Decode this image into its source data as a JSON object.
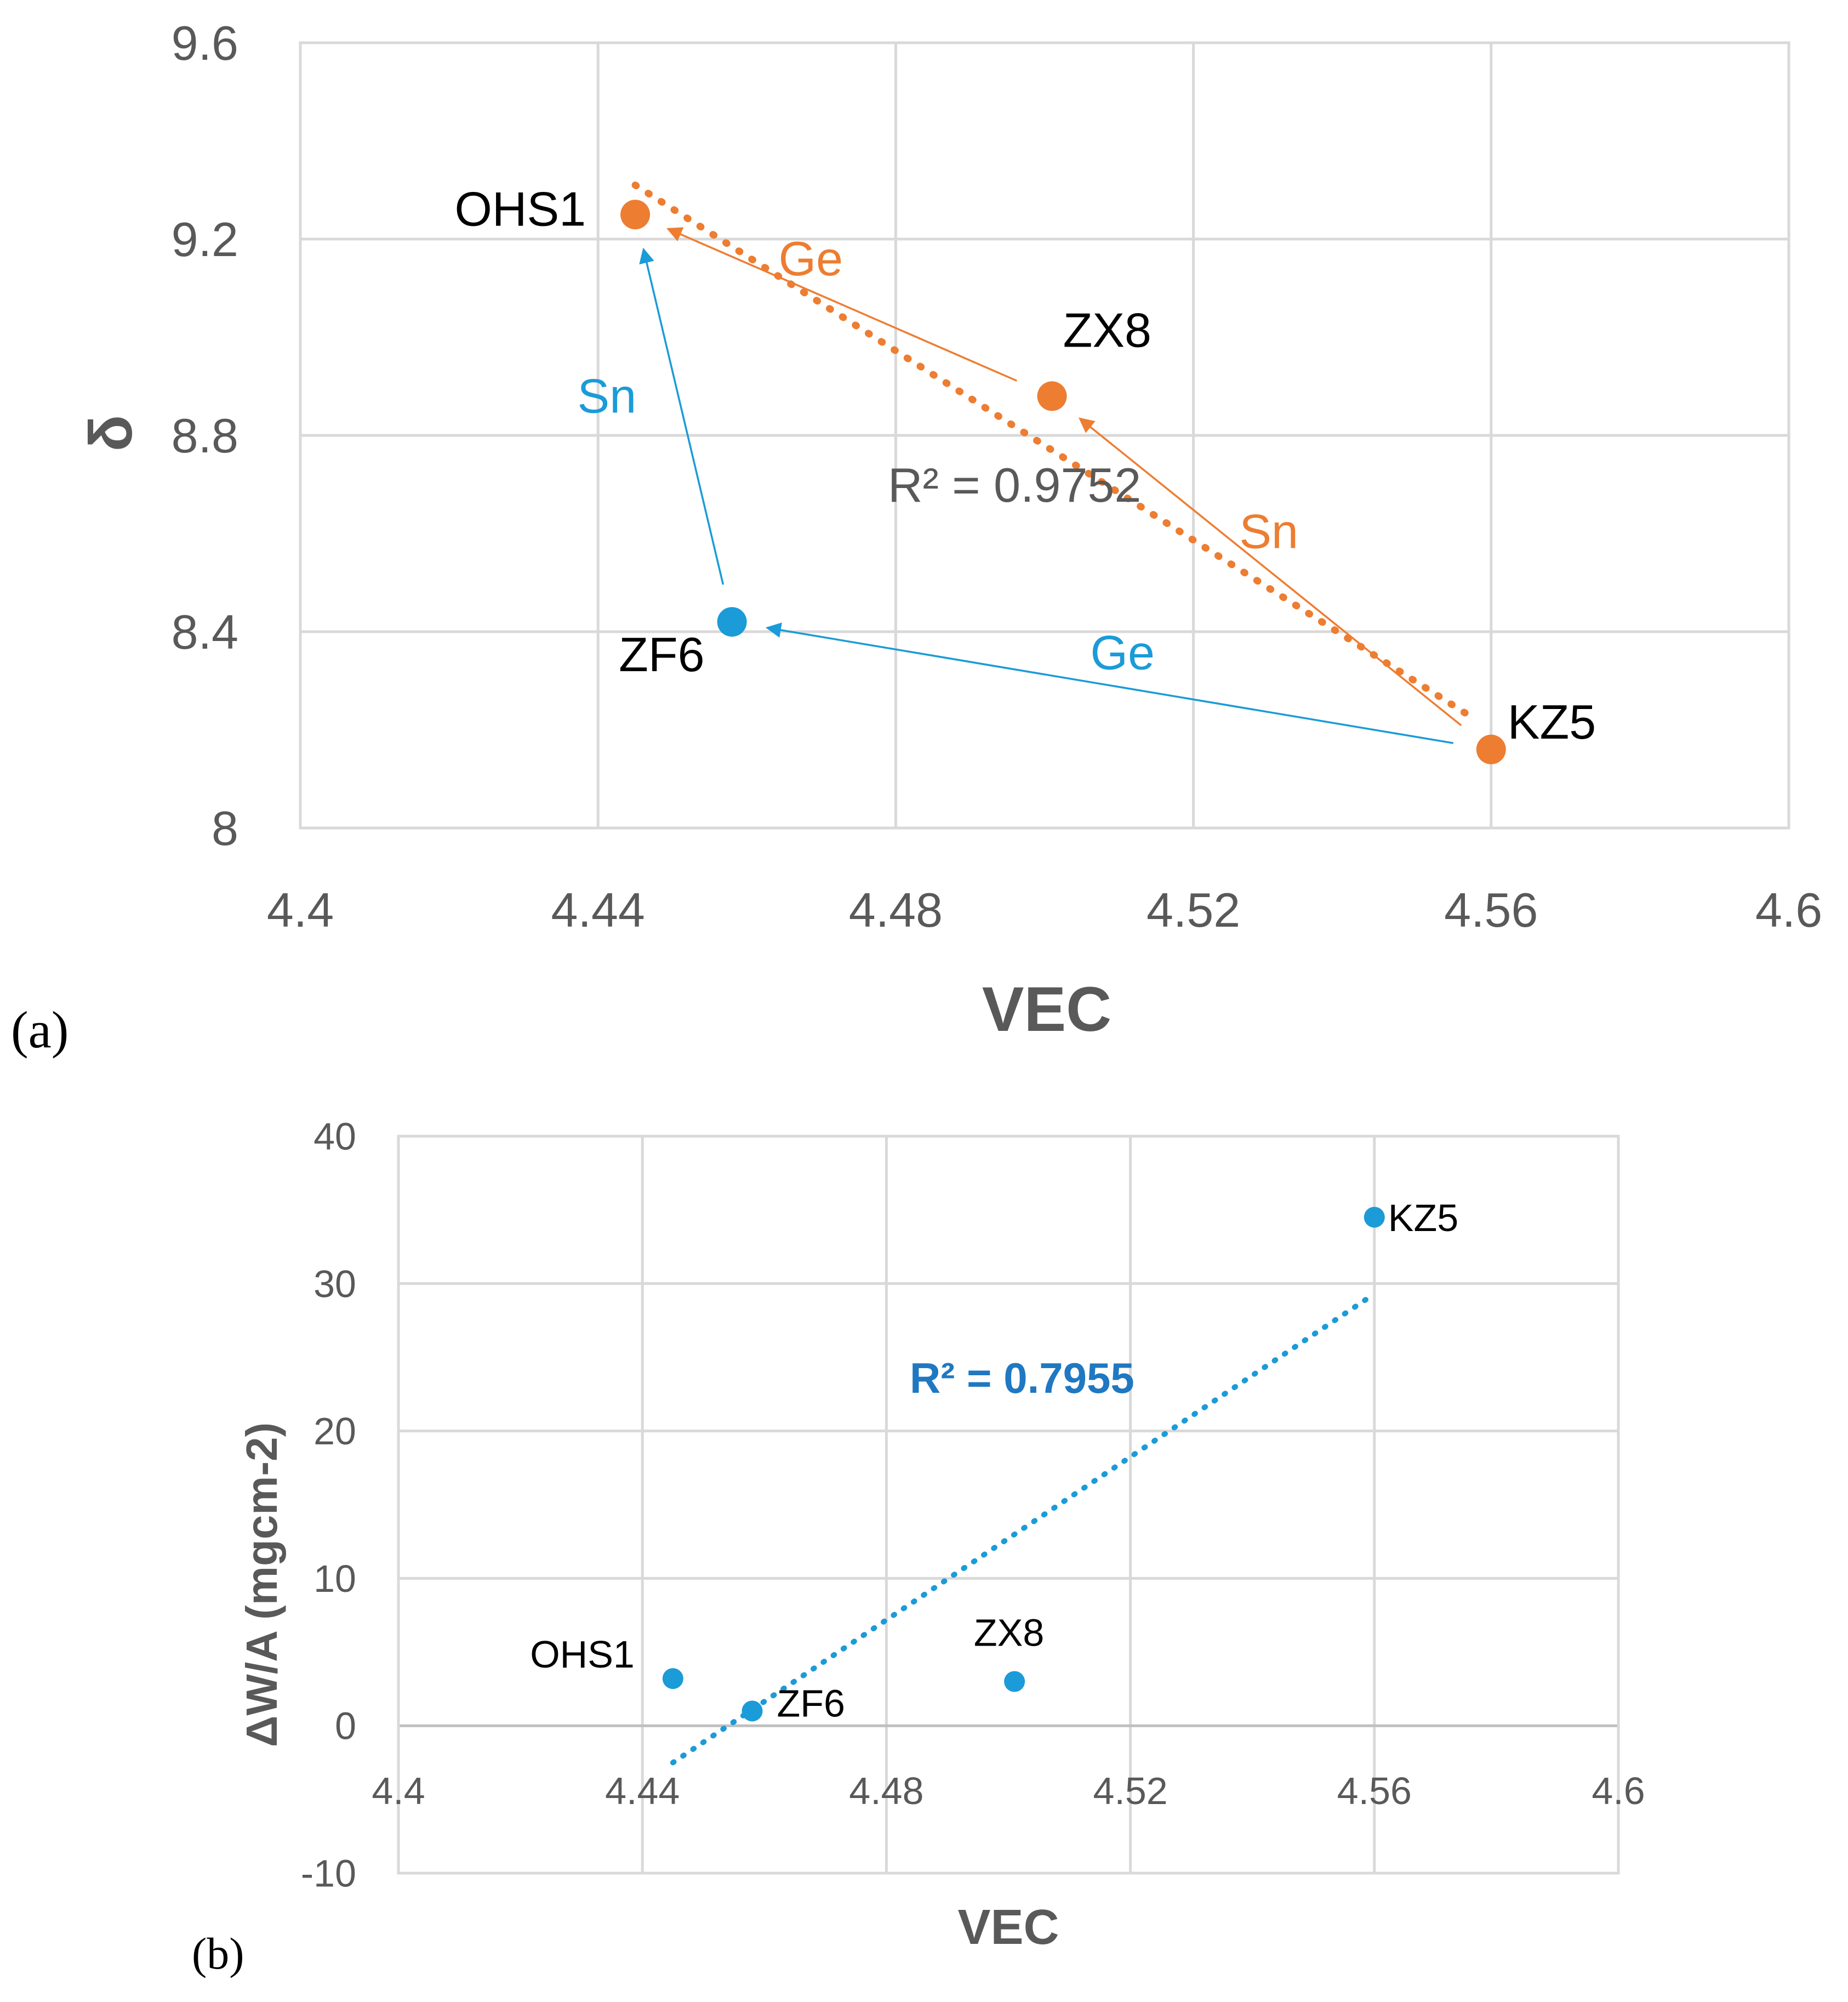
{
  "colors": {
    "orange": "#ED7D31",
    "blue": "#1B9BD8",
    "blue_text": "#1F78C1",
    "grid": "#D9D9D9",
    "axis_text": "#595959"
  },
  "chart_data": [
    {
      "panel_label": "(a)",
      "type": "scatter",
      "xlabel": "VEC",
      "ylabel": "δ",
      "xlim": [
        4.4,
        4.6
      ],
      "ylim": [
        8.0,
        9.6
      ],
      "xticks": [
        "4.4",
        "4.44",
        "4.48",
        "4.52",
        "4.56",
        "4.6"
      ],
      "yticks": [
        "8",
        "8.4",
        "8.8",
        "9.2",
        "9.6"
      ],
      "points": [
        {
          "name": "OHS1",
          "x": 4.445,
          "y": 9.25,
          "color": "orange"
        },
        {
          "name": "ZX8",
          "x": 4.501,
          "y": 8.88,
          "color": "orange"
        },
        {
          "name": "KZ5",
          "x": 4.56,
          "y": 8.16,
          "color": "orange"
        },
        {
          "name": "ZF6",
          "x": 4.458,
          "y": 8.42,
          "color": "blue"
        }
      ],
      "trendline": {
        "x": [
          4.445,
          4.558
        ],
        "y": [
          9.31,
          8.22
        ],
        "r2_label": "R² = 0.9752"
      },
      "arrows": [
        {
          "from": "KZ5",
          "to": "ZX8",
          "label": "Sn",
          "color": "orange"
        },
        {
          "from": "ZX8",
          "to": "OHS1",
          "label": "Ge",
          "color": "orange"
        },
        {
          "from": "KZ5",
          "to": "ZF6",
          "label": "Ge",
          "color": "blue"
        },
        {
          "from": "ZF6",
          "to": "OHS1",
          "label": "Sn",
          "color": "blue"
        }
      ]
    },
    {
      "panel_label": "(b)",
      "type": "scatter",
      "xlabel": "VEC",
      "ylabel": "ΔW/A (mgcm-2)",
      "xlim": [
        4.4,
        4.6
      ],
      "ylim": [
        -10,
        40
      ],
      "xticks": [
        "4.4",
        "4.44",
        "4.48",
        "4.52",
        "4.56",
        "4.6"
      ],
      "yticks": [
        "-10",
        "0",
        "10",
        "20",
        "30",
        "40"
      ],
      "points": [
        {
          "name": "OHS1",
          "x": 4.445,
          "y": 3.2
        },
        {
          "name": "ZF6",
          "x": 4.458,
          "y": 1.0
        },
        {
          "name": "ZX8",
          "x": 4.501,
          "y": 3.0
        },
        {
          "name": "KZ5",
          "x": 4.56,
          "y": 34.5
        }
      ],
      "trendline": {
        "x": [
          4.445,
          4.56
        ],
        "y": [
          -2.5,
          29.3
        ],
        "r2_label": "R² = 0.7955"
      }
    }
  ]
}
